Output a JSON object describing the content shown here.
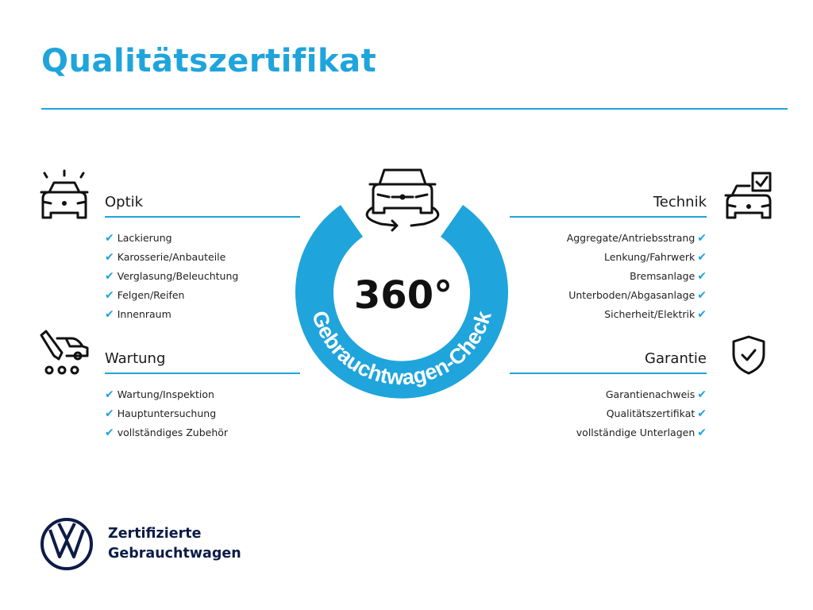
{
  "title": "Qualitätszertifikat",
  "accent_color": "#1fa4dc",
  "center": {
    "number": "360°",
    "ring_text": "Gebrauchtwagen-Check",
    "icon": "car-rotate-icon"
  },
  "sections": {
    "optik": {
      "heading": "Optik",
      "icon": "car-lights-icon",
      "items": [
        "Lackierung",
        "Karosserie/Anbauteile",
        "Verglasung/Beleuchtung",
        "Felgen/Reifen",
        "Innenraum"
      ]
    },
    "wartung": {
      "heading": "Wartung",
      "icon": "service-tools-icon",
      "items": [
        "Wartung/Inspektion",
        "Hauptuntersuchung",
        "vollständiges Zubehör"
      ]
    },
    "technik": {
      "heading": "Technik",
      "icon": "car-checklist-icon",
      "items": [
        "Aggregate/Antriebsstrang",
        "Lenkung/Fahrwerk",
        "Bremsanlage",
        "Unterboden/Abgasanlage",
        "Sicherheit/Elektrik"
      ]
    },
    "garantie": {
      "heading": "Garantie",
      "icon": "shield-check-icon",
      "items": [
        "Garantienachweis",
        "Qualitätszertifikat",
        "vollständige Unterlagen"
      ]
    }
  },
  "check_glyph": "✔",
  "brand": {
    "line1": "Zertifizierte",
    "line2": "Gebrauchtwagen",
    "logo": "vw-logo"
  }
}
